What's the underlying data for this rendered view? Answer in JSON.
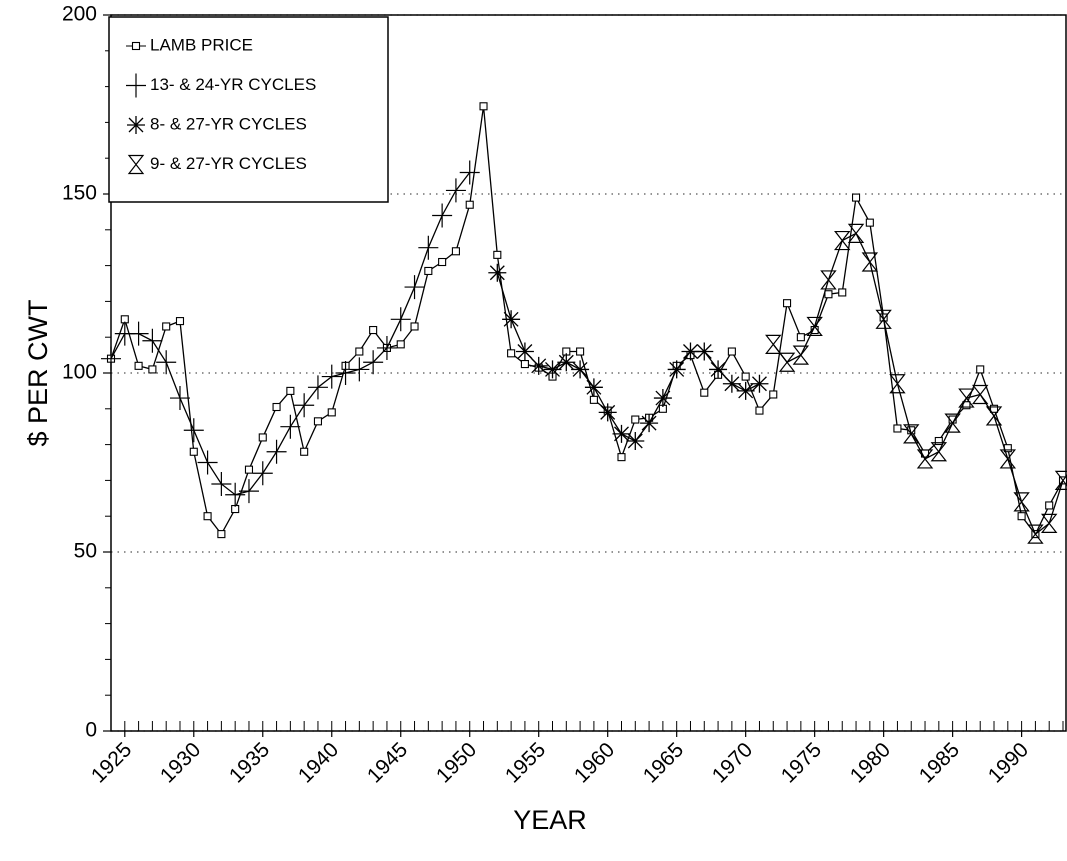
{
  "chart_data": {
    "type": "line",
    "x_label": "YEAR",
    "y_label": "$ PER CWT",
    "x": [
      1924,
      1925,
      1926,
      1927,
      1928,
      1929,
      1930,
      1931,
      1932,
      1933,
      1934,
      1935,
      1936,
      1937,
      1938,
      1939,
      1940,
      1941,
      1942,
      1943,
      1944,
      1945,
      1946,
      1947,
      1948,
      1949,
      1950,
      1951,
      1952,
      1953,
      1954,
      1955,
      1956,
      1957,
      1958,
      1959,
      1960,
      1961,
      1962,
      1963,
      1964,
      1965,
      1966,
      1967,
      1968,
      1969,
      1970,
      1971,
      1972,
      1973,
      1974,
      1975,
      1976,
      1977,
      1978,
      1979,
      1980,
      1981,
      1982,
      1983,
      1984,
      1985,
      1986,
      1987,
      1988,
      1989,
      1990,
      1991,
      1992,
      1993
    ],
    "xlim": [
      1924,
      1993
    ],
    "xticks": [
      1925,
      1930,
      1935,
      1940,
      1945,
      1950,
      1955,
      1960,
      1965,
      1970,
      1975,
      1980,
      1985,
      1990
    ],
    "ylim": [
      0,
      200
    ],
    "yticks": [
      0,
      50,
      100,
      150,
      200
    ],
    "yminorticks": [
      10,
      20,
      30,
      40,
      60,
      70,
      80,
      90,
      110,
      120,
      130,
      140,
      160,
      170,
      180,
      190
    ],
    "grid": true,
    "legend": "top-left",
    "series": [
      {
        "name": "LAMB PRICE",
        "color": "#000000",
        "marker": "square",
        "values": [
          104,
          115,
          102,
          101,
          113,
          114.5,
          78,
          60,
          55,
          62,
          73,
          82,
          90.5,
          95,
          78,
          86.5,
          89,
          102,
          106,
          112,
          107,
          108,
          113,
          128.5,
          131,
          134,
          147,
          174.5,
          133,
          105.5,
          102.5,
          101.5,
          99,
          106,
          106,
          92.5,
          89.5,
          76.5,
          87,
          87.5,
          90,
          102,
          105,
          94.5,
          99.5,
          106,
          99,
          89.5,
          94,
          119.5,
          110,
          112,
          122,
          122.5,
          149,
          142,
          115.5,
          84.5,
          84,
          77.5,
          81,
          87,
          91,
          101,
          90,
          79,
          60,
          55,
          63,
          70
        ]
      },
      {
        "name": "13- & 24-YR CYCLES",
        "color": "#000000",
        "marker": "plus",
        "values": [
          104,
          111,
          111,
          109,
          103,
          93,
          84,
          75,
          69,
          66,
          67,
          72,
          78,
          85,
          91,
          96,
          99,
          100,
          101,
          103,
          107,
          115,
          124,
          135,
          144,
          151,
          156,
          null,
          null,
          null,
          null,
          null,
          null,
          null,
          null,
          null,
          null,
          null,
          null,
          null,
          null,
          null,
          null,
          null,
          null,
          null,
          null,
          null,
          null,
          null,
          null,
          null,
          null,
          null,
          null,
          null,
          null,
          null,
          null,
          null,
          null,
          null,
          null,
          null,
          null,
          null,
          null,
          null,
          null,
          null
        ]
      },
      {
        "name": "8- & 27-YR CYCLES",
        "color": "#000000",
        "marker": "asterisk",
        "values": [
          null,
          null,
          null,
          null,
          null,
          null,
          null,
          null,
          null,
          null,
          null,
          null,
          null,
          null,
          null,
          null,
          null,
          null,
          null,
          null,
          null,
          null,
          null,
          null,
          null,
          null,
          null,
          null,
          128,
          115,
          106,
          102,
          101,
          103,
          101,
          96,
          89,
          83,
          81,
          86,
          93,
          101,
          106,
          106,
          101,
          97,
          95,
          97,
          null,
          null,
          null,
          null,
          null,
          null,
          null,
          null,
          null,
          null,
          null,
          null,
          null,
          null,
          null,
          null,
          null,
          null,
          null,
          null,
          null,
          null
        ]
      },
      {
        "name": "9- & 27-YR CYCLES",
        "color": "#000000",
        "marker": "hourglass",
        "values": [
          null,
          null,
          null,
          null,
          null,
          null,
          null,
          null,
          null,
          null,
          null,
          null,
          null,
          null,
          null,
          null,
          null,
          null,
          null,
          null,
          null,
          null,
          null,
          null,
          null,
          null,
          null,
          null,
          null,
          null,
          null,
          null,
          null,
          null,
          null,
          null,
          null,
          null,
          null,
          null,
          null,
          null,
          null,
          null,
          null,
          null,
          null,
          null,
          108,
          103,
          105,
          113,
          126,
          137,
          139,
          131,
          115,
          97,
          83,
          76,
          78,
          86,
          93,
          94,
          88,
          76,
          64,
          55,
          58,
          70
        ]
      }
    ]
  }
}
